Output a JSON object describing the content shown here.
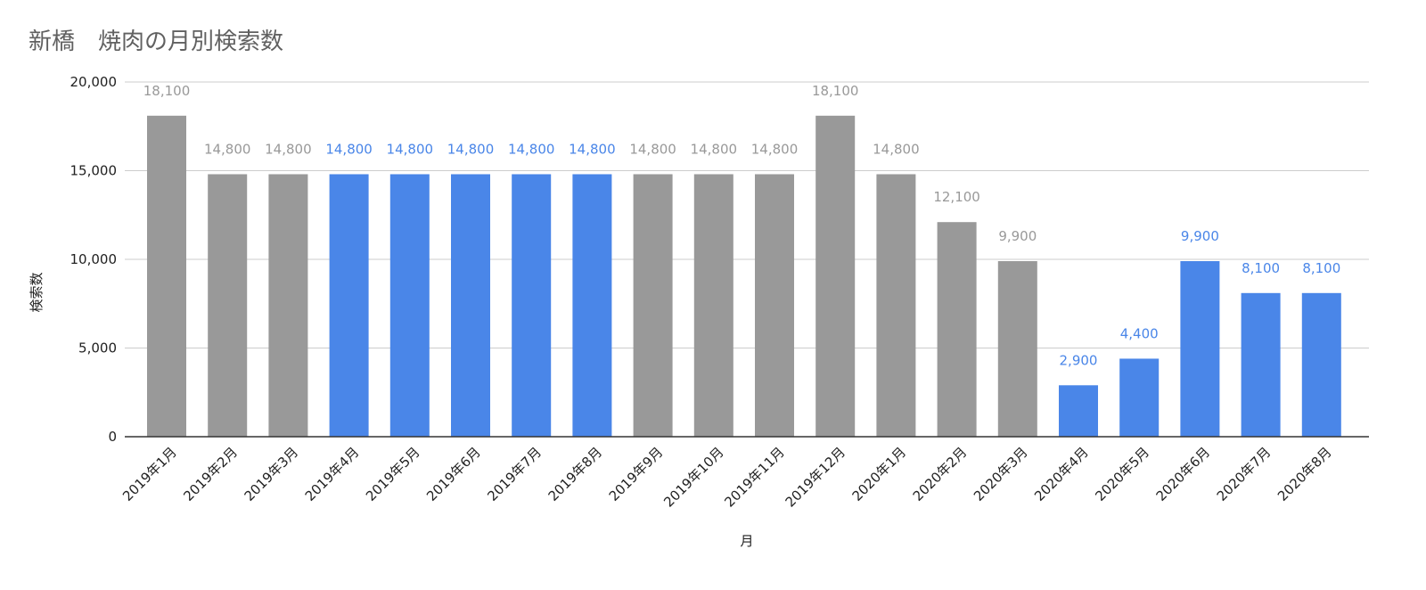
{
  "chart_data": {
    "type": "bar",
    "title": "新橋　焼肉の月別検索数",
    "xlabel": "月",
    "ylabel": "検索数",
    "ylim": [
      0,
      20000
    ],
    "yticks": [
      0,
      5000,
      10000,
      15000,
      20000
    ],
    "ytick_labels": [
      "0",
      "5,000",
      "10,000",
      "15,000",
      "20,000"
    ],
    "grid": true,
    "legend": "none",
    "categories": [
      "2019年1月",
      "2019年2月",
      "2019年3月",
      "2019年4月",
      "2019年5月",
      "2019年6月",
      "2019年7月",
      "2019年8月",
      "2019年9月",
      "2019年10月",
      "2019年11月",
      "2019年12月",
      "2020年1月",
      "2020年2月",
      "2020年3月",
      "2020年4月",
      "2020年5月",
      "2020年6月",
      "2020年7月",
      "2020年8月"
    ],
    "values": [
      18100,
      14800,
      14800,
      14800,
      14800,
      14800,
      14800,
      14800,
      14800,
      14800,
      14800,
      18100,
      14800,
      12100,
      9900,
      2900,
      4400,
      9900,
      8100,
      8100
    ],
    "value_labels": [
      "18,100",
      "14,800",
      "14,800",
      "14,800",
      "14,800",
      "14,800",
      "14,800",
      "14,800",
      "14,800",
      "14,800",
      "14,800",
      "18,100",
      "14,800",
      "12,100",
      "9,900",
      "2,900",
      "4,400",
      "9,900",
      "8,100",
      "8,100"
    ],
    "highlight": [
      false,
      false,
      false,
      true,
      true,
      true,
      true,
      true,
      false,
      false,
      false,
      false,
      false,
      false,
      false,
      true,
      true,
      true,
      true,
      true
    ],
    "colors": {
      "bar_default": "#999999",
      "bar_highlight": "#4a86e8",
      "label_default": "#999999",
      "label_highlight": "#4a86e8",
      "grid": "#cccccc",
      "axis": "#333333"
    }
  }
}
